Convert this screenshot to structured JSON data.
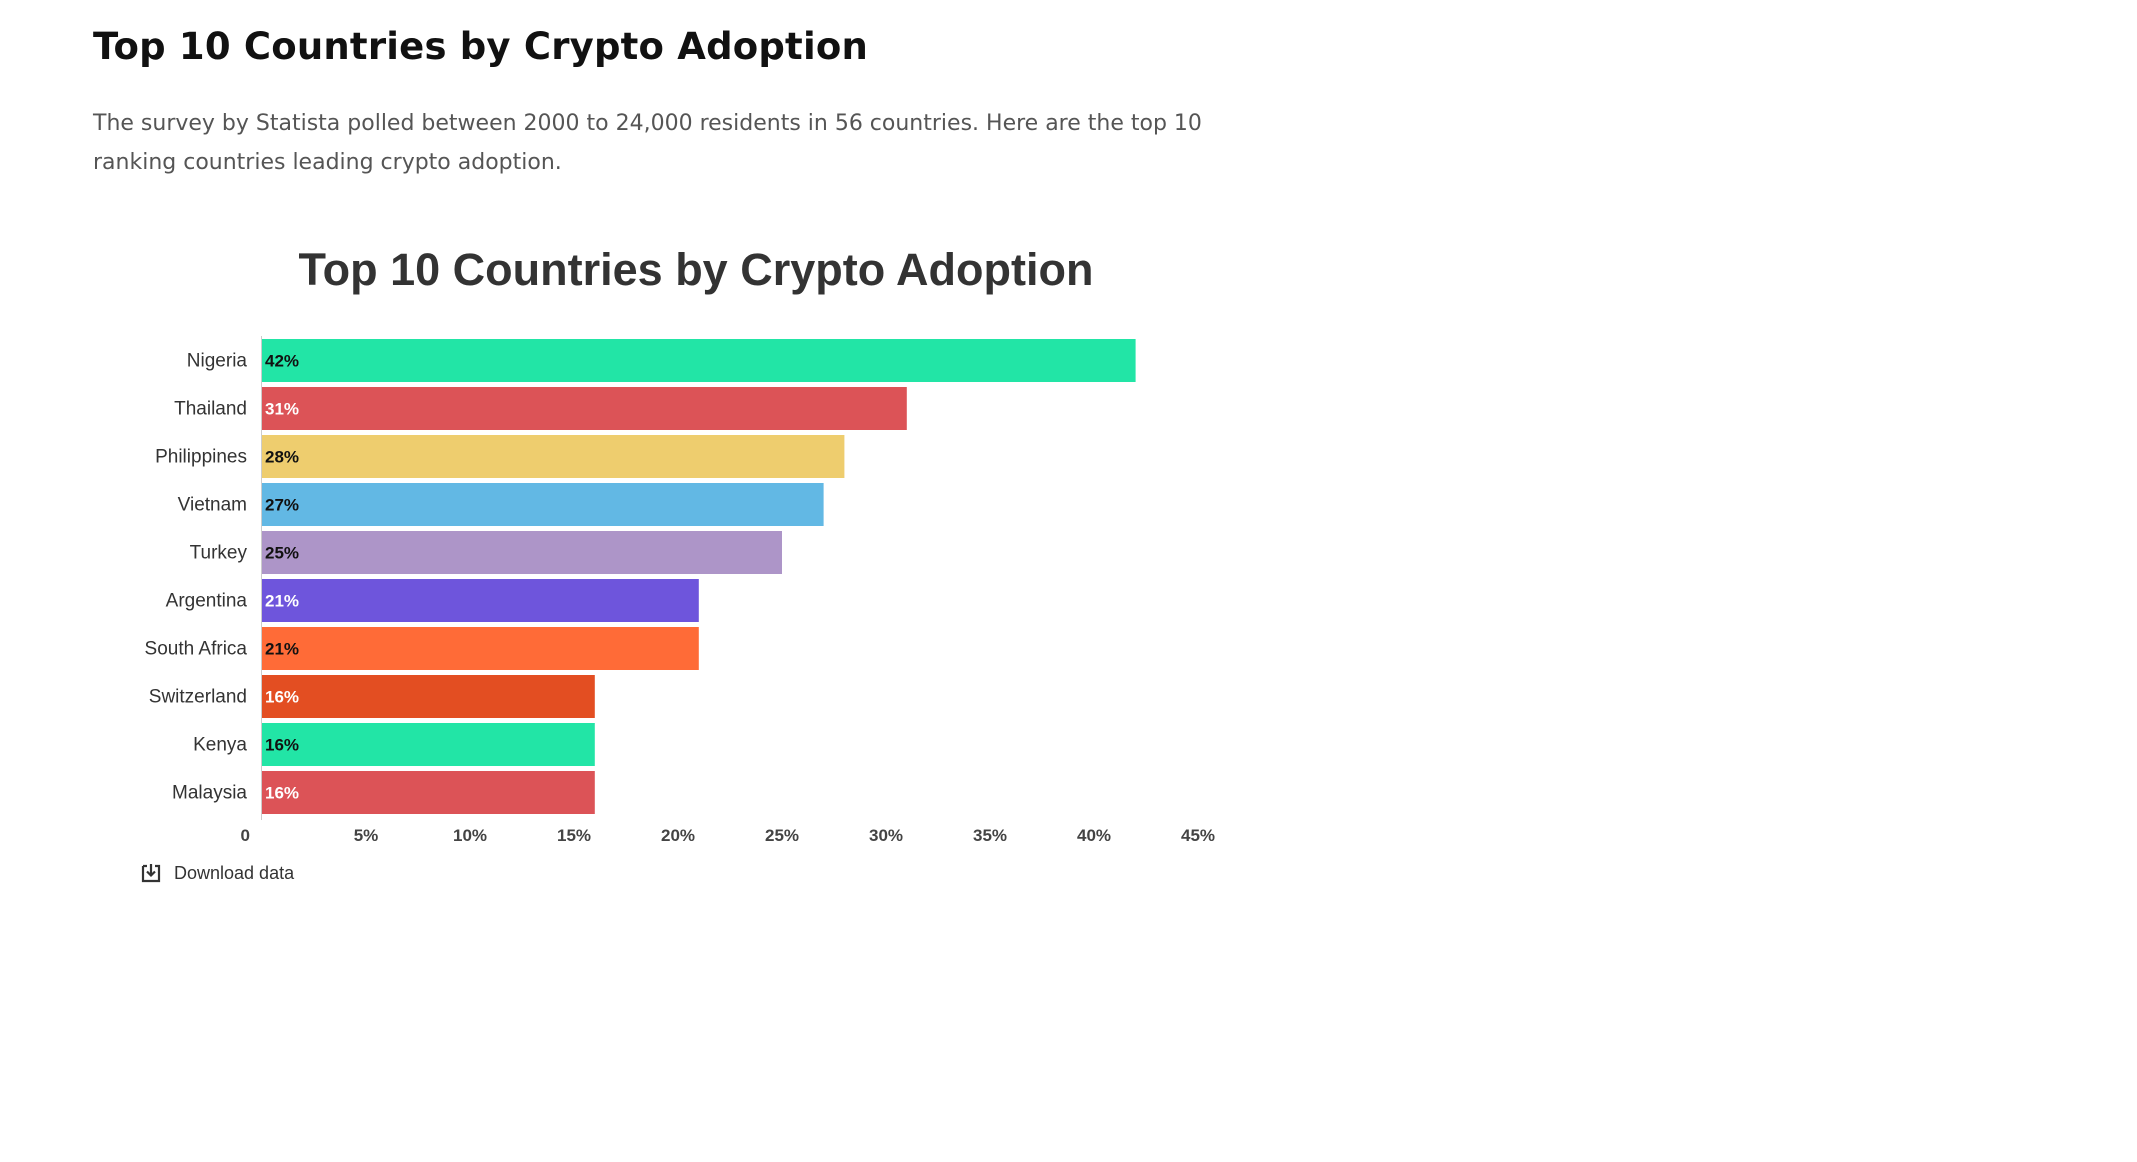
{
  "article": {
    "heading": "Top 10 Countries by Crypto Adoption",
    "intro": "The survey by Statista polled between 2000 to 24,000 residents in 56 countries. Here are the top 10 ranking countries leading crypto adoption."
  },
  "download": {
    "label": "Download data",
    "icon": "download-icon"
  },
  "chart_data": {
    "type": "bar",
    "orientation": "horizontal",
    "title": "Top 10 Countries by Crypto Adoption",
    "xlabel": "",
    "ylabel": "",
    "categories": [
      "Nigeria",
      "Thailand",
      "Philippines",
      "Vietnam",
      "Turkey",
      "Argentina",
      "South Africa",
      "Switzerland",
      "Kenya",
      "Malaysia"
    ],
    "values": [
      42,
      31,
      28,
      27,
      25,
      21,
      21,
      16,
      16,
      16
    ],
    "value_labels": [
      "42%",
      "31%",
      "28%",
      "27%",
      "25%",
      "21%",
      "21%",
      "16%",
      "16%",
      "16%"
    ],
    "colors": [
      "#22e5a6",
      "#dc5357",
      "#eecd6e",
      "#62b8e4",
      "#ad95c8",
      "#6e55dc",
      "#ff6b37",
      "#e34e22",
      "#22e5a6",
      "#dc5357"
    ],
    "label_colors": [
      "#111111",
      "#ffffff",
      "#111111",
      "#111111",
      "#111111",
      "#ffffff",
      "#111111",
      "#ffffff",
      "#111111",
      "#ffffff"
    ],
    "xlim": [
      0,
      45
    ],
    "x_ticks": [
      0,
      5,
      10,
      15,
      20,
      25,
      30,
      35,
      40,
      45
    ],
    "x_tick_labels": [
      "0",
      "5%",
      "10%",
      "15%",
      "20%",
      "25%",
      "30%",
      "35%",
      "40%",
      "45%"
    ],
    "grid": false,
    "legend": "none"
  }
}
